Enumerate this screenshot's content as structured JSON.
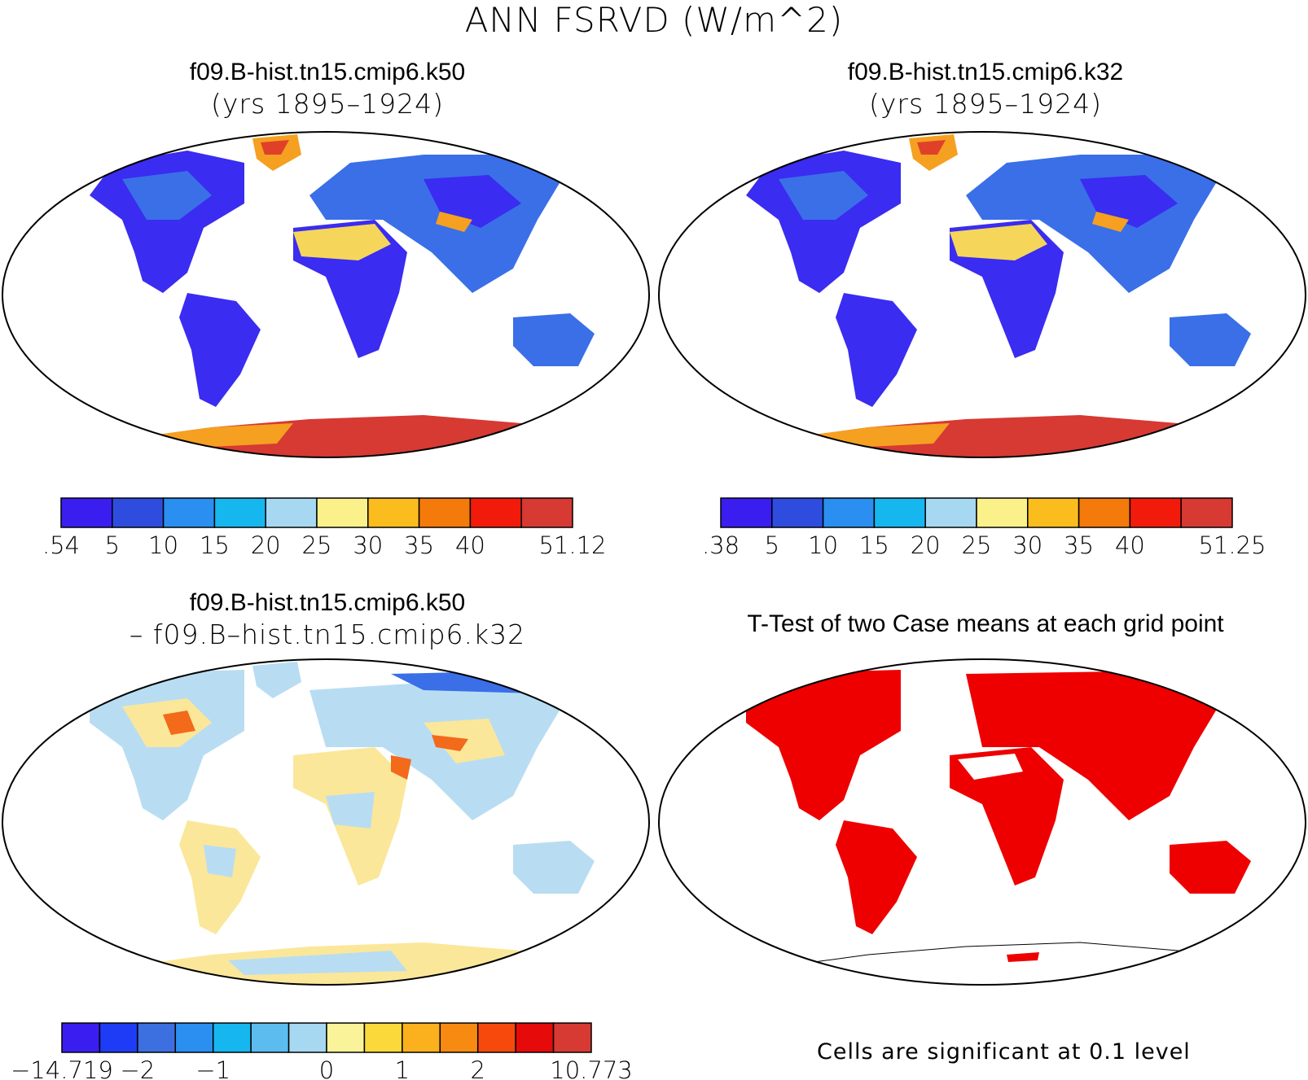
{
  "main_title": "ANN FSRVD (W/m^2)",
  "panels": {
    "p1": {
      "line1": "f09.B-hist.tn15.cmip6.k50",
      "line2": "(yrs 1895–1924)"
    },
    "p2": {
      "line1": "f09.B-hist.tn15.cmip6.k32",
      "line2": "(yrs 1895–1924)"
    },
    "p3": {
      "line1": "f09.B-hist.tn15.cmip6.k50",
      "line2": "– f09.B–hist.tn15.cmip6.k32"
    },
    "p4": {
      "line1": "T-Test of two Case means at each grid point",
      "note": "Cells are significant at 0.1 level"
    }
  },
  "colorbars": {
    "cb1": {
      "colors": [
        "#3a1ef0",
        "#2e4ddf",
        "#2a8ff0",
        "#16b6ef",
        "#a6d8f2",
        "#fbf18b",
        "#fbbd1d",
        "#f57a0c",
        "#f21b0b",
        "#d63a33"
      ],
      "labels": [
        ".54",
        "5",
        "10",
        "15",
        "20",
        "25",
        "30",
        "35",
        "40",
        "51.12"
      ]
    },
    "cb2": {
      "colors": [
        "#3a1ef0",
        "#2e4ddf",
        "#2a8ff0",
        "#16b6ef",
        "#a6d8f2",
        "#fbf18b",
        "#fbbd1d",
        "#f57a0c",
        "#f21b0b",
        "#d63a33"
      ],
      "labels": [
        ".38",
        "5",
        "10",
        "15",
        "20",
        "25",
        "30",
        "35",
        "40",
        "51.25"
      ]
    },
    "cb3": {
      "colors": [
        "#3a1ef0",
        "#1e3cf5",
        "#3c6fe0",
        "#2a8ff0",
        "#16b6ef",
        "#5cbcf0",
        "#a6d8f2",
        "#fbf39a",
        "#fbd93a",
        "#fbb01d",
        "#f78a10",
        "#f54a0c",
        "#e60a0a",
        "#d63a33"
      ],
      "labels": [
        "−14.719",
        "−2",
        "−1",
        "0",
        "1",
        "2",
        "10.773"
      ]
    }
  },
  "map_colors": {
    "mean_land": "#3a2cf0",
    "mean_land_light": "#3a6fe8",
    "greenland": "#f5a020",
    "greenland_core": "#e0402a",
    "sahara": "#f5d65a",
    "antarctica": "#d63a33",
    "antarctica_edge": "#f5a020",
    "diff_land": "#b8ddf2",
    "diff_warm": "#fbe79a",
    "diff_hot": "#f26a1a",
    "ttest": "#ee0000"
  }
}
